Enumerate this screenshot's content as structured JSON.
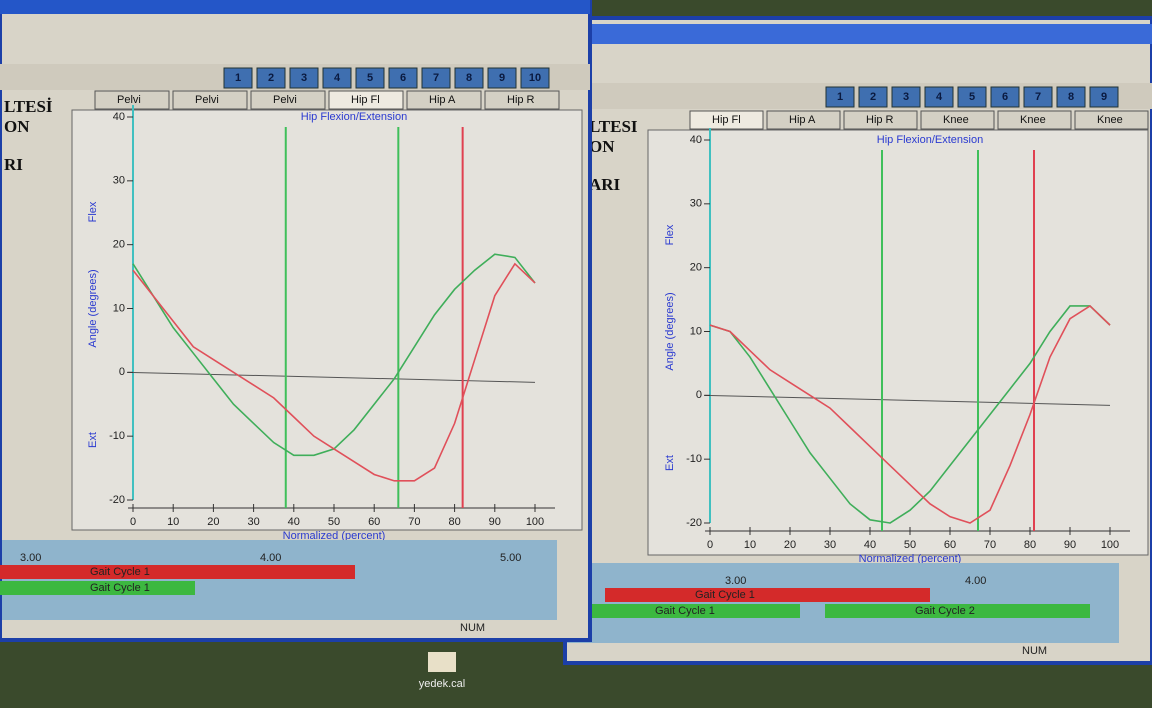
{
  "windows": [
    {
      "side_text": [
        "LTESİ",
        "ON",
        "RI"
      ],
      "toolbar_numbers": [
        "1",
        "2",
        "3",
        "4",
        "5",
        "6",
        "7",
        "8",
        "9",
        "10"
      ],
      "tabs": [
        "Pelvi",
        "Pelvi",
        "Pelvi",
        "Hip Fl",
        "Hip A",
        "Hip R"
      ],
      "chart": {
        "type": "line",
        "title": "Hip Flexion/Extension",
        "y_label": "Angle (degrees)",
        "y_top_label": "Flex",
        "y_bottom_label": "Ext",
        "x_label": "Normalized (percent)",
        "x": [
          0,
          5,
          10,
          15,
          20,
          25,
          30,
          35,
          40,
          45,
          50,
          55,
          60,
          65,
          70,
          75,
          80,
          85,
          90,
          95,
          100
        ],
        "series": [
          {
            "color": "#3fae5a",
            "values": [
              17,
              12,
              7,
              3,
              -1,
              -5,
              -8,
              -11,
              -13,
              -13,
              -12,
              -9,
              -5,
              -1,
              4,
              9,
              13,
              16,
              18.5,
              18,
              14
            ]
          },
          {
            "color": "#e0505a",
            "values": [
              16,
              12,
              8,
              4,
              2,
              0,
              -2,
              -4,
              -7,
              -10,
              -12,
              -14,
              -16,
              -17,
              -17,
              -15,
              -8,
              2,
              12,
              17,
              14
            ]
          }
        ],
        "markers": [
          {
            "x": 38,
            "color": "#3fbf5a"
          },
          {
            "x": 66,
            "color": "#3fbf5a"
          },
          {
            "x": 82,
            "color": "#e04050"
          }
        ],
        "xlim": [
          0,
          100
        ],
        "ylim": [
          -20,
          40
        ],
        "xticks": [
          0,
          10,
          20,
          30,
          40,
          50,
          60,
          70,
          80,
          90,
          100
        ],
        "yticks": [
          -20,
          -10,
          0,
          10,
          20,
          30,
          40
        ]
      },
      "timeline": {
        "ticks": [
          "3.00",
          "4.00",
          "5.00"
        ],
        "bars": [
          "Gait Cycle 1",
          "Gait Cycle 1"
        ]
      },
      "status": "NUM"
    },
    {
      "side_text": [
        "LTESI",
        "ON",
        "ARI"
      ],
      "toolbar_numbers": [
        "1",
        "2",
        "3",
        "4",
        "5",
        "6",
        "7",
        "8",
        "9"
      ],
      "tabs": [
        "Hip Fl",
        "Hip A",
        "Hip R",
        "Knee",
        "Knee",
        "Knee"
      ],
      "chart": {
        "type": "line",
        "title": "Hip Flexion/Extension",
        "y_label": "Angle (degrees)",
        "y_top_label": "Flex",
        "y_bottom_label": "Ext",
        "x_label": "Normalized (percent)",
        "x": [
          0,
          5,
          10,
          15,
          20,
          25,
          30,
          35,
          40,
          45,
          50,
          55,
          60,
          65,
          70,
          75,
          80,
          85,
          90,
          95,
          100
        ],
        "series": [
          {
            "color": "#3fae5a",
            "values": [
              11,
              10,
              6,
              1,
              -4,
              -9,
              -13,
              -17,
              -19.5,
              -20,
              -18,
              -15,
              -11,
              -7,
              -3,
              1,
              5,
              10,
              14,
              14,
              11
            ]
          },
          {
            "color": "#e0505a",
            "values": [
              11,
              10,
              7,
              4,
              2,
              0,
              -2,
              -5,
              -8,
              -11,
              -14,
              -17,
              -19,
              -20,
              -18,
              -11,
              -3,
              6,
              12,
              14,
              11
            ]
          }
        ],
        "markers": [
          {
            "x": 43,
            "color": "#3fbf5a"
          },
          {
            "x": 67,
            "color": "#3fbf5a"
          },
          {
            "x": 81,
            "color": "#e04050"
          }
        ],
        "xlim": [
          0,
          100
        ],
        "ylim": [
          -20,
          40
        ],
        "xticks": [
          0,
          10,
          20,
          30,
          40,
          50,
          60,
          70,
          80,
          90,
          100
        ],
        "yticks": [
          -20,
          -10,
          0,
          10,
          20,
          30,
          40
        ]
      },
      "timeline": {
        "ticks": [
          "3.00",
          "4.00"
        ],
        "bars": [
          "Gait Cycle 1",
          "Gait Cycle 1",
          "Gait Cycle 2"
        ]
      },
      "status": "NUM"
    }
  ],
  "desktop_icon": "yedek.cal"
}
